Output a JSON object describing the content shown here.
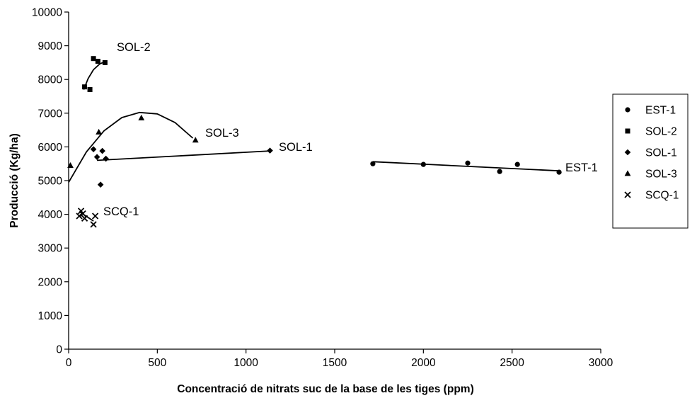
{
  "chart_data": {
    "type": "scatter",
    "xlabel": "Concentració de nitrats suc de la base de les tiges (ppm)",
    "ylabel": "Producció (Kg/ha)",
    "xlim": [
      0,
      3000
    ],
    "ylim": [
      0,
      10000
    ],
    "x_ticks": [
      0,
      500,
      1000,
      1500,
      2000,
      2500,
      3000
    ],
    "y_ticks": [
      0,
      1000,
      2000,
      3000,
      4000,
      5000,
      6000,
      7000,
      8000,
      9000,
      10000
    ],
    "grid": false,
    "legend_position": "right",
    "series": [
      {
        "name": "EST-1",
        "marker": "circle",
        "points": [
          [
            1715,
            5500
          ],
          [
            2000,
            5480
          ],
          [
            2250,
            5520
          ],
          [
            2430,
            5270
          ],
          [
            2530,
            5480
          ],
          [
            2765,
            5250
          ]
        ],
        "trend": [
          [
            1715,
            5560
          ],
          [
            2765,
            5290
          ]
        ],
        "label": "EST-1"
      },
      {
        "name": "SOL-2",
        "marker": "square",
        "points": [
          [
            90,
            7780
          ],
          [
            120,
            7700
          ],
          [
            140,
            8620
          ],
          [
            165,
            8540
          ],
          [
            205,
            8500
          ]
        ],
        "trend": [
          [
            85,
            7700
          ],
          [
            110,
            8030
          ],
          [
            140,
            8290
          ],
          [
            175,
            8460
          ],
          [
            210,
            8540
          ]
        ],
        "label": "SOL-2"
      },
      {
        "name": "SOL-1",
        "marker": "diamond",
        "points": [
          [
            140,
            5930
          ],
          [
            160,
            5700
          ],
          [
            180,
            4880
          ],
          [
            190,
            5880
          ],
          [
            210,
            5650
          ],
          [
            1135,
            5890
          ]
        ],
        "trend": [
          [
            160,
            5600
          ],
          [
            1135,
            5880
          ]
        ],
        "label": "SOL-1"
      },
      {
        "name": "SOL-3",
        "marker": "triangle",
        "points": [
          [
            10,
            5450
          ],
          [
            170,
            6440
          ],
          [
            410,
            6860
          ],
          [
            715,
            6200
          ]
        ],
        "trend": [
          [
            0,
            4950
          ],
          [
            100,
            5850
          ],
          [
            200,
            6480
          ],
          [
            300,
            6870
          ],
          [
            400,
            7020
          ],
          [
            500,
            6980
          ],
          [
            600,
            6720
          ],
          [
            700,
            6260
          ]
        ],
        "label": "SOL-3"
      },
      {
        "name": "SCQ-1",
        "marker": "x",
        "points": [
          [
            60,
            3950
          ],
          [
            70,
            4100
          ],
          [
            80,
            4020
          ],
          [
            90,
            3880
          ],
          [
            140,
            3700
          ],
          [
            150,
            3950
          ]
        ],
        "trend": [
          [
            60,
            4080
          ],
          [
            140,
            3800
          ]
        ],
        "label": "SCQ-1"
      }
    ]
  }
}
